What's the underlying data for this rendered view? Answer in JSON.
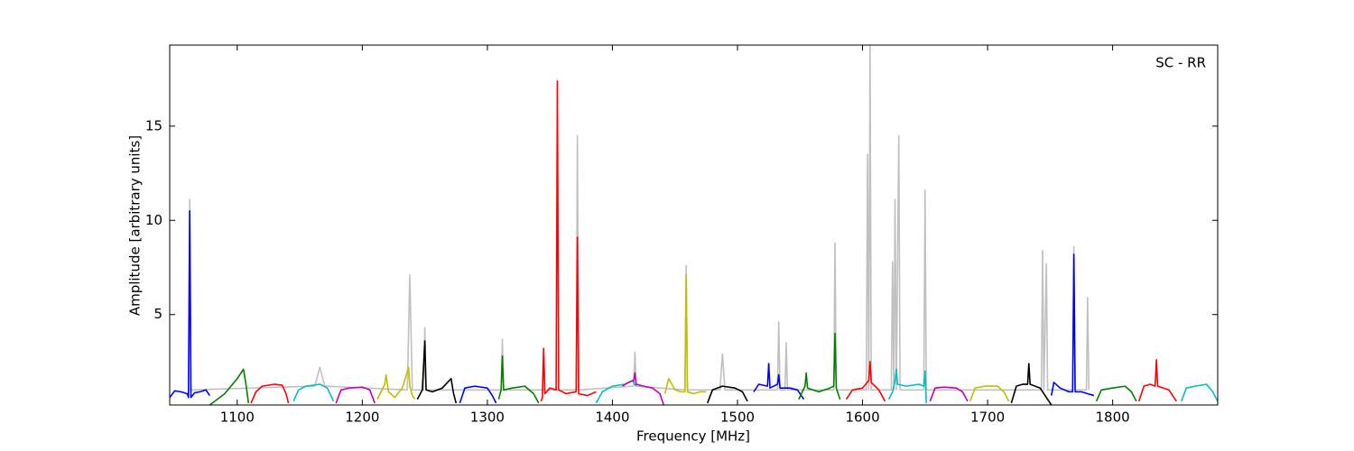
{
  "chart_data": {
    "type": "line",
    "xlabel": "Frequency [MHz]",
    "ylabel": "Amplitude [arbitrary units]",
    "annotation": "SC - RR",
    "xlim": [
      1046,
      1884
    ],
    "ylim": [
      0.2,
      19.3
    ],
    "xticks": [
      1100,
      1200,
      1300,
      1400,
      1500,
      1600,
      1700,
      1800
    ],
    "yticks": [
      5,
      10,
      15
    ],
    "series": [
      {
        "color": "#c0c0c0",
        "x": [
          1061,
          1062,
          1063,
          1162,
          1166,
          1170,
          1236,
          1238,
          1240,
          1249,
          1250,
          1251,
          1311,
          1312,
          1313,
          1371,
          1372,
          1373,
          1417,
          1418,
          1419,
          1458,
          1459,
          1460,
          1486,
          1488,
          1490,
          1532,
          1533,
          1534,
          1538,
          1539,
          1540,
          1577,
          1578,
          1579,
          1603,
          1604,
          1605,
          1606,
          1607,
          1623,
          1624,
          1625,
          1626,
          1627,
          1629,
          1630,
          1649,
          1650,
          1651,
          1743,
          1744,
          1745,
          1747,
          1748,
          1768,
          1769,
          1770,
          1779,
          1780,
          1781
        ],
        "values": [
          1.0,
          11.1,
          1.0,
          1.2,
          2.2,
          1.2,
          1.0,
          7.1,
          1.0,
          1.0,
          4.3,
          1.0,
          1.0,
          3.7,
          1.0,
          1.0,
          14.5,
          1.0,
          1.2,
          3.0,
          1.2,
          1.0,
          7.6,
          1.0,
          1.0,
          2.9,
          1.0,
          1.0,
          4.6,
          1.0,
          1.0,
          3.5,
          1.0,
          1.0,
          8.8,
          1.0,
          1.0,
          13.5,
          1.0,
          19.3,
          1.0,
          1.0,
          7.8,
          1.0,
          11.1,
          1.0,
          14.5,
          1.0,
          1.0,
          11.6,
          1.0,
          1.0,
          8.4,
          1.0,
          7.7,
          1.0,
          1.0,
          8.6,
          1.0,
          1.0,
          5.9,
          1.0
        ]
      },
      {
        "color": "#0000ff",
        "x": [
          1046,
          1050,
          1055,
          1060,
          1061,
          1062,
          1063,
          1066,
          1070,
          1075,
          1078
        ],
        "values": [
          0.6,
          0.95,
          0.9,
          0.8,
          0.6,
          10.5,
          0.6,
          0.85,
          0.9,
          1.0,
          0.7
        ]
      },
      {
        "color": "#008000",
        "x": [
          1078,
          1084,
          1090,
          1095,
          1100,
          1105,
          1107,
          1109
        ],
        "values": [
          0.2,
          0.5,
          0.8,
          1.2,
          1.6,
          2.1,
          1.3,
          0.3
        ]
      },
      {
        "color": "#ff0000",
        "x": [
          1111,
          1115,
          1120,
          1130,
          1136,
          1139,
          1141
        ],
        "values": [
          0.3,
          0.9,
          1.2,
          1.3,
          1.25,
          0.8,
          0.3
        ]
      },
      {
        "color": "#00bfbf",
        "x": [
          1145,
          1149,
          1155,
          1166,
          1172,
          1177
        ],
        "values": [
          0.4,
          1.0,
          1.2,
          1.3,
          1.1,
          0.4
        ]
      },
      {
        "color": "#bf00bf",
        "x": [
          1179,
          1183,
          1190,
          1200,
          1206,
          1210
        ],
        "values": [
          0.3,
          1.0,
          1.1,
          1.15,
          1.0,
          0.3
        ]
      },
      {
        "color": "#bfbf00",
        "x": [
          1212,
          1218,
          1219,
          1221,
          1226,
          1232,
          1237,
          1238,
          1240,
          1242
        ],
        "values": [
          0.5,
          1.3,
          1.8,
          0.9,
          0.6,
          1.1,
          2.2,
          1.2,
          0.7,
          0.5
        ]
      },
      {
        "color": "#000000",
        "x": [
          1244,
          1248,
          1250,
          1251,
          1256,
          1264,
          1271,
          1273,
          1275
        ],
        "values": [
          0.5,
          1.0,
          3.6,
          1.0,
          0.9,
          1.1,
          1.6,
          0.8,
          0.3
        ]
      },
      {
        "color": "#0000ff",
        "x": [
          1278,
          1282,
          1290,
          1300,
          1304,
          1307
        ],
        "values": [
          0.3,
          1.1,
          1.2,
          1.1,
          0.7,
          0.3
        ]
      },
      {
        "color": "#008000",
        "x": [
          1309,
          1311,
          1312,
          1313,
          1320,
          1330,
          1337,
          1341
        ],
        "values": [
          0.5,
          1.0,
          2.8,
          1.0,
          1.1,
          1.2,
          0.8,
          0.3
        ]
      },
      {
        "color": "#ff0000",
        "x": [
          1343,
          1344,
          1345,
          1346,
          1350,
          1355,
          1356,
          1357,
          1363,
          1371,
          1372,
          1373,
          1380,
          1387
        ],
        "values": [
          0.4,
          0.6,
          3.2,
          0.8,
          1.1,
          1.0,
          17.4,
          1.0,
          0.8,
          0.9,
          9.1,
          0.8,
          0.7,
          0.9
        ]
      },
      {
        "color": "#00bfbf",
        "x": [
          1387,
          1392,
          1400,
          1410,
          1416,
          1419
        ],
        "values": [
          0.3,
          0.9,
          1.2,
          1.3,
          1.5,
          1.2
        ]
      },
      {
        "color": "#bf00bf",
        "x": [
          1408,
          1413,
          1417,
          1418,
          1419,
          1425,
          1432,
          1438,
          1441
        ],
        "values": [
          1.2,
          1.4,
          1.5,
          1.9,
          1.3,
          1.2,
          1.1,
          0.8,
          0.2
        ]
      },
      {
        "color": "#bfbf00",
        "x": [
          1442,
          1445,
          1450,
          1455,
          1458,
          1459,
          1460,
          1465,
          1470,
          1475
        ],
        "values": [
          0.8,
          1.6,
          1.0,
          0.9,
          0.9,
          7.1,
          0.9,
          0.8,
          0.9,
          0.9
        ]
      },
      {
        "color": "#000000",
        "x": [
          1476,
          1480,
          1488,
          1498,
          1504,
          1508
        ],
        "values": [
          0.3,
          1.0,
          1.2,
          1.1,
          0.9,
          0.4
        ]
      },
      {
        "color": "#0000ff",
        "x": [
          1513,
          1517,
          1524,
          1525,
          1526,
          1532,
          1533,
          1534,
          1542,
          1548,
          1553
        ],
        "values": [
          0.9,
          1.3,
          1.2,
          2.4,
          1.1,
          1.3,
          1.8,
          1.1,
          1.1,
          1.0,
          0.5
        ]
      },
      {
        "color": "#008000",
        "x": [
          1549,
          1554,
          1555,
          1556,
          1565,
          1574,
          1577,
          1578,
          1579,
          1582
        ],
        "values": [
          0.5,
          1.2,
          1.9,
          1.1,
          0.9,
          1.1,
          1.2,
          4.0,
          1.1,
          0.5
        ]
      },
      {
        "color": "#ff0000",
        "x": [
          1587,
          1592,
          1600,
          1605,
          1606,
          1607,
          1613,
          1618
        ],
        "values": [
          0.5,
          1.0,
          1.1,
          1.5,
          2.5,
          1.4,
          1.0,
          0.4
        ]
      },
      {
        "color": "#00bfbf",
        "x": [
          1621,
          1624,
          1626,
          1627,
          1628,
          1635,
          1645,
          1649,
          1650,
          1651
        ],
        "values": [
          0.5,
          0.9,
          1.5,
          2.1,
          1.3,
          1.2,
          1.3,
          1.2,
          2.0,
          0.3
        ]
      },
      {
        "color": "#bf00bf",
        "x": [
          1654,
          1658,
          1665,
          1675,
          1680,
          1684
        ],
        "values": [
          0.4,
          1.1,
          1.15,
          1.1,
          0.9,
          0.4
        ]
      },
      {
        "color": "#bfbf00",
        "x": [
          1686,
          1690,
          1698,
          1708,
          1713,
          1717
        ],
        "values": [
          0.4,
          1.1,
          1.2,
          1.2,
          0.9,
          0.4
        ]
      },
      {
        "color": "#000000",
        "x": [
          1719,
          1723,
          1728,
          1732,
          1733,
          1734,
          1742,
          1748,
          1751
        ],
        "values": [
          0.3,
          1.2,
          1.3,
          1.3,
          2.4,
          1.3,
          1.1,
          0.5,
          0.2
        ]
      },
      {
        "color": "#0000ff",
        "x": [
          1751,
          1753,
          1758,
          1765,
          1768,
          1769,
          1770,
          1775,
          1780,
          1785
        ],
        "values": [
          0.7,
          1.4,
          1.1,
          0.9,
          0.9,
          8.2,
          0.9,
          0.9,
          0.8,
          0.7
        ]
      },
      {
        "color": "#008000",
        "x": [
          1787,
          1791,
          1800,
          1810,
          1815,
          1819
        ],
        "values": [
          0.4,
          1.0,
          1.1,
          1.2,
          0.9,
          0.4
        ]
      },
      {
        "color": "#ff0000",
        "x": [
          1821,
          1825,
          1830,
          1834,
          1835,
          1836,
          1845,
          1851
        ],
        "values": [
          0.4,
          1.2,
          1.3,
          1.2,
          2.6,
          1.2,
          1.0,
          0.4
        ]
      },
      {
        "color": "#00bfbf",
        "x": [
          1855,
          1859,
          1866,
          1875,
          1880,
          1884
        ],
        "values": [
          0.4,
          1.1,
          1.2,
          1.3,
          0.9,
          0.4
        ]
      }
    ]
  }
}
